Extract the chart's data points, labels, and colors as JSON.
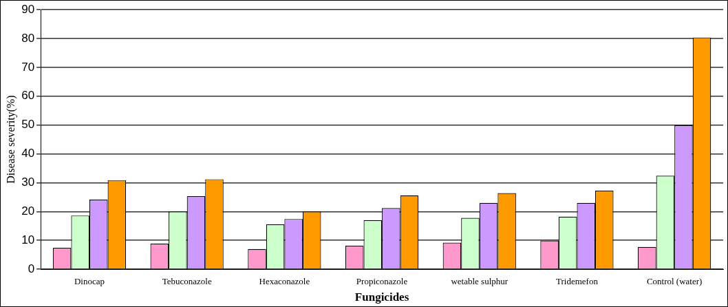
{
  "chart_data": {
    "type": "bar",
    "xlabel": "Fungicides",
    "ylabel": "Disease severity(%)",
    "categories": [
      "Dinocap",
      "Tebuconazole",
      "Hexaconazole",
      "Propiconazole",
      "wetable sulphur",
      "Tridemefon",
      "Control (water)"
    ],
    "series": [
      {
        "color": "#ff99cc",
        "values": [
          7.4,
          8.9,
          7.0,
          8.1,
          9.2,
          9.9,
          7.7
        ]
      },
      {
        "color": "#ccffcc",
        "values": [
          18.6,
          20.0,
          15.6,
          17.0,
          17.8,
          18.2,
          32.4
        ]
      },
      {
        "color": "#cc99ff",
        "values": [
          24.1,
          25.3,
          17.4,
          21.2,
          23.0,
          23.0,
          49.9
        ]
      },
      {
        "color": "#ff9900",
        "values": [
          30.9,
          31.2,
          20.0,
          25.6,
          26.4,
          27.2,
          80.4
        ]
      }
    ],
    "ylim": [
      0,
      90
    ],
    "yticks": [
      0,
      10,
      20,
      30,
      40,
      50,
      60,
      70,
      80,
      90
    ],
    "grid": "y",
    "legend": false
  }
}
